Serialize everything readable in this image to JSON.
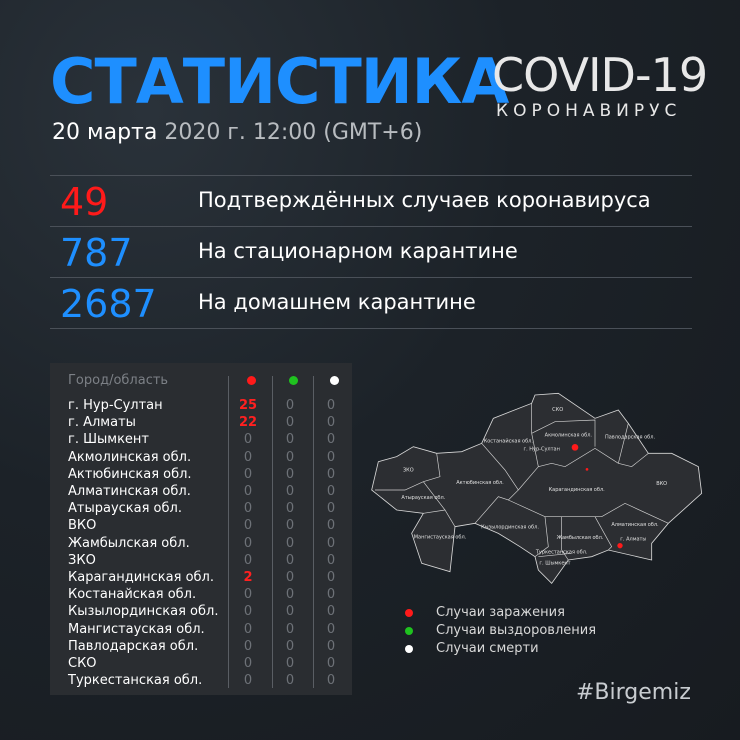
{
  "header": {
    "title": "СТАТИСТИКА",
    "date_main": "20 марта",
    "date_rest": " 2020 г. 12:00 (GMT+6)",
    "logo_main": "COVID-19",
    "logo_sub": "КОРОНАВИРУС"
  },
  "stats": [
    {
      "value": "49",
      "label": "Подтверждённых случаев коронавируса",
      "color": "#ff1a1a"
    },
    {
      "value": "787",
      "label": "На стационарном карантине",
      "color": "#1e8fff"
    },
    {
      "value": "2687",
      "label": "На домашнем карантине",
      "color": "#1e8fff"
    }
  ],
  "table": {
    "header": "Город/область",
    "column_colors": [
      "#ff1a1a",
      "#1fc21f",
      "#ffffff"
    ],
    "rows": [
      {
        "name": "г. Нур-Султан",
        "v": [
          "25",
          "0",
          "0"
        ]
      },
      {
        "name": "г. Алматы",
        "v": [
          "22",
          "0",
          "0"
        ]
      },
      {
        "name": "г. Шымкент",
        "v": [
          "0",
          "0",
          "0"
        ]
      },
      {
        "name": "Акмолинская обл.",
        "v": [
          "0",
          "0",
          "0"
        ]
      },
      {
        "name": "Актюбинская обл.",
        "v": [
          "0",
          "0",
          "0"
        ]
      },
      {
        "name": "Алматинская обл.",
        "v": [
          "0",
          "0",
          "0"
        ]
      },
      {
        "name": "Атырауская обл.",
        "v": [
          "0",
          "0",
          "0"
        ]
      },
      {
        "name": "ВКО",
        "v": [
          "0",
          "0",
          "0"
        ]
      },
      {
        "name": "Жамбылская обл.",
        "v": [
          "0",
          "0",
          "0"
        ]
      },
      {
        "name": "ЗКО",
        "v": [
          "0",
          "0",
          "0"
        ]
      },
      {
        "name": "Карагандинская обл.",
        "v": [
          "2",
          "0",
          "0"
        ]
      },
      {
        "name": "Костанайская обл.",
        "v": [
          "0",
          "0",
          "0"
        ]
      },
      {
        "name": "Кызылординская обл.",
        "v": [
          "0",
          "0",
          "0"
        ]
      },
      {
        "name": "Мангистауская обл.",
        "v": [
          "0",
          "0",
          "0"
        ]
      },
      {
        "name": "Павлодарская обл.",
        "v": [
          "0",
          "0",
          "0"
        ]
      },
      {
        "name": "СКО",
        "v": [
          "0",
          "0",
          "0"
        ]
      },
      {
        "name": "Туркестанская обл.",
        "v": [
          "0",
          "0",
          "0"
        ]
      }
    ]
  },
  "map": {
    "labels": [
      "ЗКО",
      "Атырауская обл.",
      "Мангистауская обл.",
      "Актюбинская обл.",
      "Костанайская обл.",
      "СКО",
      "Акмолинская обл.",
      "г. Нур-Султан",
      "Павлодарская обл.",
      "Карагандинская обл.",
      "ВКО",
      "Кызылординская обл.",
      "Жамбылская обл.",
      "Туркестанская обл.",
      "г. Шымкент",
      "Алматинская обл.",
      "г. Алматы"
    ]
  },
  "legend": [
    {
      "label": "Случаи заражения",
      "color": "#ff1a1a"
    },
    {
      "label": "Случаи выздоровления",
      "color": "#1fc21f"
    },
    {
      "label": "Случаи смерти",
      "color": "#ffffff"
    }
  ],
  "hashtag": "#Birgemiz"
}
